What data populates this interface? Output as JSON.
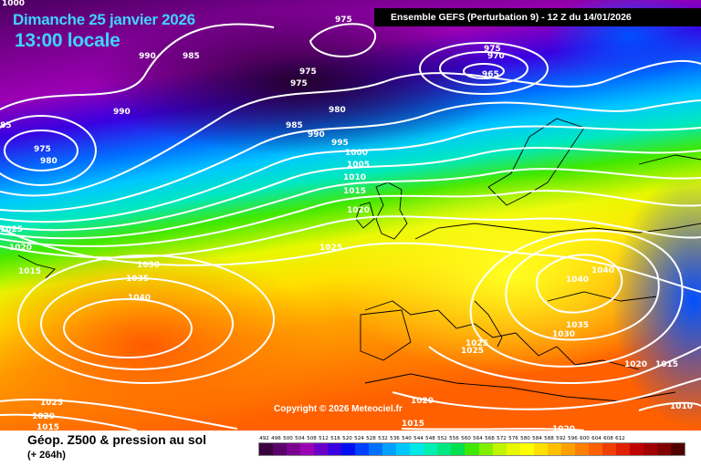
{
  "header": {
    "date": "Dimanche 25 janvier 2026",
    "time": "13:00 locale",
    "model": "Ensemble GEFS  (Perturbation 9)  -  12 Z du 14/01/2026"
  },
  "copyright": "Copyright © 2026 Meteociel.fr",
  "footer": {
    "field": "Géop. Z500 & pression au sol",
    "forecast_hour": "(+ 264h)"
  },
  "scale": {
    "values": [
      "492",
      "496",
      "500",
      "504",
      "508",
      "512",
      "516",
      "520",
      "524",
      "528",
      "532",
      "536",
      "540",
      "544",
      "548",
      "552",
      "556",
      "560",
      "564",
      "568",
      "572",
      "576",
      "580",
      "584",
      "588",
      "592",
      "596",
      "600",
      "604",
      "608",
      "612"
    ],
    "colors": [
      "#3b0040",
      "#5a006a",
      "#7a008f",
      "#9a00b4",
      "#6a00c8",
      "#3a00e0",
      "#0010f0",
      "#0040ff",
      "#0070ff",
      "#00a0ff",
      "#00c8ff",
      "#00e8e8",
      "#00f0b4",
      "#00e880",
      "#00e050",
      "#40e800",
      "#80f000",
      "#c0f400",
      "#e8f800",
      "#ffff00",
      "#ffe000",
      "#ffc000",
      "#ffa000",
      "#ff8000",
      "#ff6000",
      "#f04000",
      "#e02000",
      "#c00000",
      "#a00000",
      "#800000",
      "#500000"
    ]
  },
  "pressure_labels": [
    {
      "text": "1000"
    },
    {
      "text": "975"
    },
    {
      "text": "975"
    },
    {
      "text": "970"
    },
    {
      "text": "965"
    },
    {
      "text": "990"
    },
    {
      "text": "985"
    },
    {
      "text": "975"
    },
    {
      "text": "975"
    },
    {
      "text": "85"
    },
    {
      "text": "990"
    },
    {
      "text": "980"
    },
    {
      "text": "985"
    },
    {
      "text": "990"
    },
    {
      "text": "995"
    },
    {
      "text": "975"
    },
    {
      "text": "980"
    },
    {
      "text": "1000"
    },
    {
      "text": "1005"
    },
    {
      "text": "1010"
    },
    {
      "text": "1015"
    },
    {
      "text": "1020"
    },
    {
      "text": "1025"
    },
    {
      "text": "1025"
    },
    {
      "text": "1020"
    },
    {
      "text": "1015"
    },
    {
      "text": "1030"
    },
    {
      "text": "1035"
    },
    {
      "text": "1040"
    },
    {
      "text": "1040"
    },
    {
      "text": "1040"
    },
    {
      "text": "1035"
    },
    {
      "text": "1030"
    },
    {
      "text": "1025"
    },
    {
      "text": "1025"
    },
    {
      "text": "1020"
    },
    {
      "text": "1015"
    },
    {
      "text": "1010"
    },
    {
      "text": "1020"
    },
    {
      "text": "1015"
    },
    {
      "text": "1020"
    },
    {
      "text": "1025"
    },
    {
      "text": "1020"
    },
    {
      "text": "1015"
    }
  ]
}
